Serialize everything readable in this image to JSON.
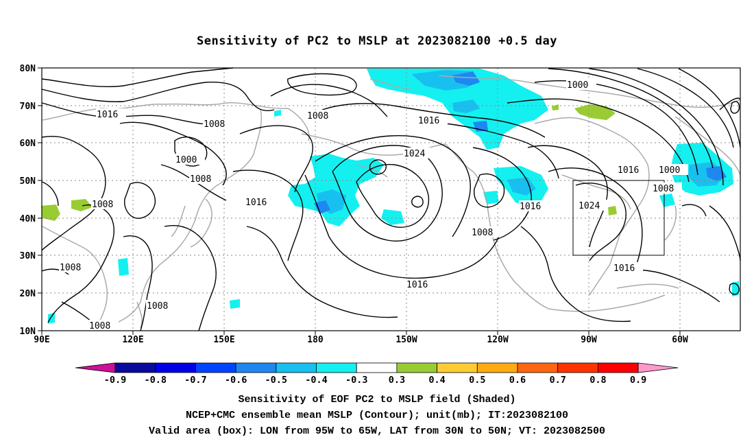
{
  "title": "Sensitivity of PC2 to MSLP at 2023082100 +0.5 day",
  "map": {
    "lat_labels": [
      "80N",
      "70N",
      "60N",
      "50N",
      "40N",
      "30N",
      "20N",
      "10N"
    ],
    "lon_labels": [
      "90E",
      "120E",
      "150E",
      "180",
      "150W",
      "120W",
      "90W",
      "60W"
    ],
    "contour_labels": [
      {
        "text": "1016"
      },
      {
        "text": "1008"
      },
      {
        "text": "1000"
      },
      {
        "text": "1008"
      },
      {
        "text": "1008"
      },
      {
        "text": "1008"
      },
      {
        "text": "1008"
      },
      {
        "text": "1008"
      },
      {
        "text": "1008"
      },
      {
        "text": "1016"
      },
      {
        "text": "1016"
      },
      {
        "text": "1024"
      },
      {
        "text": "1016"
      },
      {
        "text": "1008"
      },
      {
        "text": "1016"
      },
      {
        "text": "1000"
      },
      {
        "text": "1016"
      },
      {
        "text": "1000"
      },
      {
        "text": "1008"
      },
      {
        "text": "1024"
      },
      {
        "text": "1016"
      }
    ],
    "valid_box": {
      "lon_from": "95W",
      "lon_to": "65W",
      "lat_from": "30N",
      "lat_to": "50N"
    }
  },
  "colorbar": {
    "labels": [
      "-0.9",
      "-0.8",
      "-0.7",
      "-0.6",
      "-0.5",
      "-0.4",
      "-0.3",
      "0.3",
      "0.4",
      "0.5",
      "0.6",
      "0.7",
      "0.8",
      "0.9"
    ],
    "colors": [
      "#cc1199",
      "#0a0a9e",
      "#0000e6",
      "#0044ff",
      "#1e88f0",
      "#18c0f0",
      "#14f0f0",
      "#ffffff",
      "#99cc33",
      "#ffcc33",
      "#ffaa11",
      "#ff6611",
      "#ff3300",
      "#ff0000",
      "#ff99cc"
    ]
  },
  "captions": [
    "Sensitivity of EOF PC2 to MSLP field (Shaded)",
    "NCEP+CMC ensemble mean MSLP (Contour); unit(mb); IT:2023082100",
    "Valid area (box): LON from 95W to 65W, LAT from 30N to 50N; VT: 2023082500"
  ]
}
